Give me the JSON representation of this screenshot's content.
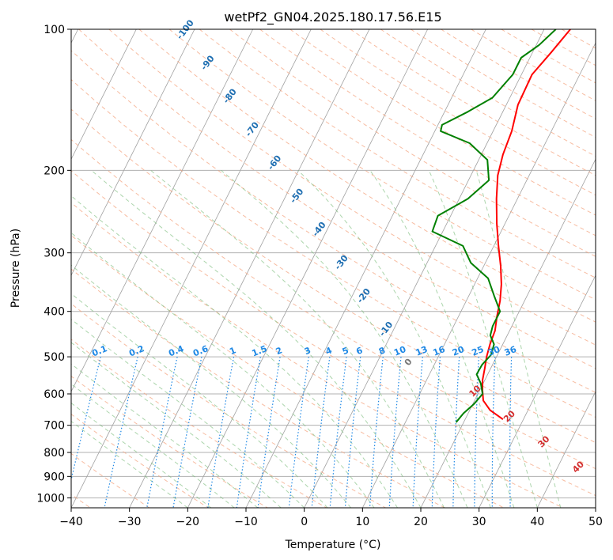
{
  "chart_data": {
    "type": "line",
    "title": "wetPf2_GN04.2025.180.17.56.E15",
    "xlabel": "Temperature (°C)",
    "ylabel": "Pressure (hPa)",
    "xlim": [
      -40,
      50
    ],
    "ylim": [
      1050,
      100
    ],
    "y_scale": "log",
    "grid": true,
    "x_ticks": [
      -40,
      -30,
      -20,
      -10,
      0,
      10,
      20,
      30,
      40,
      50
    ],
    "y_ticks": [
      100,
      200,
      300,
      400,
      500,
      600,
      700,
      800,
      900,
      1000
    ],
    "series": [
      {
        "color": "#ff0000",
        "points": [
          {
            "p": 680,
            "t": 26.5
          },
          {
            "p": 650,
            "t": 23.5
          },
          {
            "p": 620,
            "t": 21.5
          },
          {
            "p": 590,
            "t": 20.5
          },
          {
            "p": 560,
            "t": 19.6
          },
          {
            "p": 530,
            "t": 19.0
          },
          {
            "p": 500,
            "t": 18.3
          },
          {
            "p": 470,
            "t": 17.8
          },
          {
            "p": 440,
            "t": 17.5
          },
          {
            "p": 410,
            "t": 16.6
          },
          {
            "p": 380,
            "t": 15.8
          },
          {
            "p": 350,
            "t": 14.6
          },
          {
            "p": 320,
            "t": 12.9
          },
          {
            "p": 290,
            "t": 10.8
          },
          {
            "p": 260,
            "t": 8.6
          },
          {
            "p": 230,
            "t": 6.4
          },
          {
            "p": 205,
            "t": 4.6
          },
          {
            "p": 185,
            "t": 3.7
          },
          {
            "p": 165,
            "t": 3.2
          },
          {
            "p": 145,
            "t": 2.0
          },
          {
            "p": 125,
            "t": 1.8
          },
          {
            "p": 112,
            "t": 3.2
          },
          {
            "p": 100,
            "t": 4.5
          }
        ]
      },
      {
        "color": "#008000",
        "points": [
          {
            "p": 690,
            "t": 18.7
          },
          {
            "p": 660,
            "t": 19.2
          },
          {
            "p": 630,
            "t": 20.2
          },
          {
            "p": 600,
            "t": 20.8
          },
          {
            "p": 570,
            "t": 19.6
          },
          {
            "p": 545,
            "t": 18.1
          },
          {
            "p": 520,
            "t": 18.2
          },
          {
            "p": 495,
            "t": 18.9
          },
          {
            "p": 470,
            "t": 18.5
          },
          {
            "p": 450,
            "t": 17.1
          },
          {
            "p": 430,
            "t": 16.7
          },
          {
            "p": 400,
            "t": 16.7
          },
          {
            "p": 370,
            "t": 14.3
          },
          {
            "p": 340,
            "t": 11.8
          },
          {
            "p": 315,
            "t": 7.5
          },
          {
            "p": 290,
            "t": 4.7
          },
          {
            "p": 270,
            "t": -1.8
          },
          {
            "p": 250,
            "t": -2.2
          },
          {
            "p": 230,
            "t": 1.5
          },
          {
            "p": 210,
            "t": 3.5
          },
          {
            "p": 190,
            "t": 1.5
          },
          {
            "p": 175,
            "t": -3.0
          },
          {
            "p": 165,
            "t": -9.0
          },
          {
            "p": 160,
            "t": -9.3
          },
          {
            "p": 150,
            "t": -6.0
          },
          {
            "p": 140,
            "t": -3.0
          },
          {
            "p": 125,
            "t": -1.5
          },
          {
            "p": 115,
            "t": -1.5
          },
          {
            "p": 108,
            "t": 0.5
          },
          {
            "p": 100,
            "t": 2.0
          }
        ]
      }
    ],
    "mixing_ratio_lines": [
      "0.1",
      "0.2",
      "0.4",
      "0.6",
      "1",
      "1.5",
      "2",
      "3",
      "4",
      "5",
      "6",
      "8",
      "10",
      "13",
      "16",
      "20",
      "25",
      "30",
      "36"
    ],
    "dry_adiabat_labels": [
      "-100",
      "-90",
      "-80",
      "-70",
      "-60",
      "-50",
      "-40",
      "-30",
      "-20",
      "-10",
      "0"
    ],
    "moist_adiabat_labels": [
      "10",
      "20",
      "30",
      "40"
    ],
    "colors": {
      "isobar": "#b0b0b0",
      "isotherm": "#a0a0a0",
      "dry_adiabat": "#f4a582",
      "moist_adiabat": "#7fbf7f",
      "mixing_ratio": "#1e88e5",
      "dry_label": "#1f6fb2",
      "moist_label": "#d32f2f"
    }
  }
}
